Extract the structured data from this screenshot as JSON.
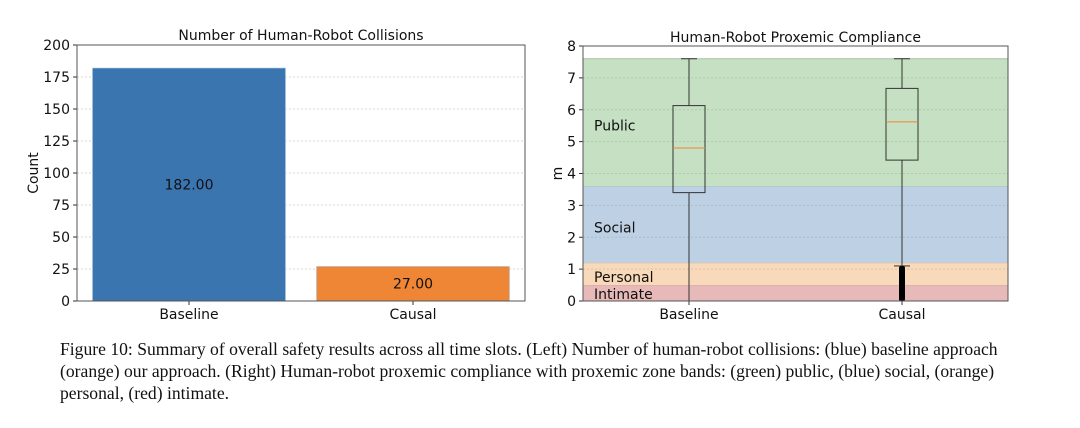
{
  "chart_data": [
    {
      "type": "bar",
      "title": "Number of Human-Robot Collisions",
      "xlabel": "",
      "ylabel": "Count",
      "categories": [
        "Baseline",
        "Causal"
      ],
      "values": [
        182,
        27
      ],
      "value_labels": [
        "182.00",
        "27.00"
      ],
      "colors": [
        "#3b75af",
        "#ef8636"
      ],
      "ylim": [
        0,
        200
      ],
      "yticks": [
        0,
        25,
        50,
        75,
        100,
        125,
        150,
        175,
        200
      ],
      "grid": true
    },
    {
      "type": "box",
      "title": "Human-Robot Proxemic Compliance",
      "xlabel": "",
      "ylabel": "m",
      "categories": [
        "Baseline",
        "Causal"
      ],
      "boxes": [
        {
          "whisker_low": 0,
          "q1": 3.4,
          "median": 4.8,
          "q3": 6.13,
          "whisker_high": 7.6,
          "outliers": []
        },
        {
          "whisker_low": 1.1,
          "q1": 4.42,
          "median": 5.62,
          "q3": 6.67,
          "whisker_high": 7.6,
          "outliers_range": [
            0,
            1.1
          ]
        }
      ],
      "bands": [
        {
          "name": "Intimate",
          "from": 0,
          "to": 0.5,
          "color": "#e8b9b9"
        },
        {
          "name": "Personal",
          "from": 0.5,
          "to": 1.2,
          "color": "#f8d9b9"
        },
        {
          "name": "Social",
          "from": 1.2,
          "to": 3.6,
          "color": "#bed1e4"
        },
        {
          "name": "Public",
          "from": 3.6,
          "to": 7.6,
          "color": "#c5e0c2"
        }
      ],
      "ylim": [
        0,
        8
      ],
      "yticks": [
        0,
        1,
        2,
        3,
        4,
        5,
        6,
        7,
        8
      ],
      "grid": true
    }
  ],
  "caption": "Figure 10: Summary of overall safety results across all time slots. (Left) Number of human-robot collisions: (blue) baseline approach (orange) our approach. (Right) Human-robot proxemic compliance with proxemic zone bands: (green) public, (blue) social, (orange) personal, (red) intimate."
}
